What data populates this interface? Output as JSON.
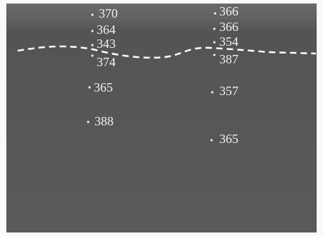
{
  "labels": {
    "left": [
      "370",
      "364",
      "343",
      "374",
      "365",
      "388"
    ],
    "right": [
      "366",
      "366",
      "354",
      "387",
      "357",
      "365"
    ]
  }
}
